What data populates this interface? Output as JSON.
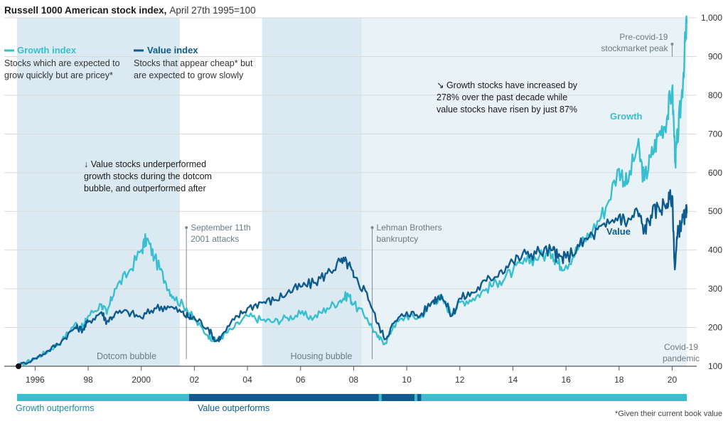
{
  "colors": {
    "growth": "#38bfcf",
    "value": "#0e5b8f",
    "shade": "#cfe3ee",
    "gridline": "#d9d9d9",
    "annotation_line": "#7a8a96"
  },
  "chart_data": {
    "type": "line",
    "title": "Russell 1000 American stock index,",
    "subtitle": "April 27th 1995=100",
    "ylim": [
      100,
      1000
    ],
    "yticks": [
      100,
      200,
      300,
      400,
      500,
      600,
      700,
      800,
      900,
      1000
    ],
    "ytick_labels": [
      "100",
      "200",
      "300",
      "400",
      "500",
      "600",
      "700",
      "800",
      "900",
      "1,000"
    ],
    "xlim": [
      1995.32,
      2020.55
    ],
    "xticks": [
      1996,
      1998,
      2000,
      2002,
      2004,
      2006,
      2008,
      2010,
      2012,
      2014,
      2016,
      2018,
      2020
    ],
    "xtick_labels": [
      "1996",
      "98",
      "2000",
      "02",
      "04",
      "06",
      "08",
      "10",
      "12",
      "14",
      "16",
      "18",
      "20"
    ],
    "series": [
      {
        "name": "Growth",
        "x": [
          1995.32,
          1996.0,
          1996.5,
          1997.0,
          1997.5,
          1997.8,
          1998.0,
          1998.5,
          1998.7,
          1999.0,
          1999.5,
          2000.0,
          2000.2,
          2000.5,
          2000.9,
          2001.2,
          2001.7,
          2002.0,
          2002.5,
          2002.8,
          2003.0,
          2003.5,
          2004.0,
          2004.5,
          2005.0,
          2005.5,
          2006.0,
          2006.5,
          2007.0,
          2007.5,
          2007.8,
          2008.0,
          2008.5,
          2008.9,
          2009.2,
          2009.5,
          2010.0,
          2010.5,
          2011.0,
          2011.3,
          2011.7,
          2012.0,
          2012.5,
          2013.0,
          2013.5,
          2014.0,
          2014.5,
          2015.0,
          2015.5,
          2015.7,
          2016.0,
          2016.5,
          2017.0,
          2017.5,
          2018.0,
          2018.3,
          2018.7,
          2018.95,
          2019.2,
          2019.5,
          2019.8,
          2020.0,
          2020.12,
          2020.2,
          2020.35,
          2020.5,
          2020.55
        ],
        "y": [
          100,
          120,
          140,
          165,
          210,
          200,
          230,
          260,
          235,
          300,
          340,
          400,
          430,
          380,
          320,
          280,
          250,
          220,
          180,
          165,
          175,
          200,
          230,
          220,
          215,
          225,
          235,
          225,
          250,
          270,
          285,
          260,
          225,
          175,
          160,
          205,
          230,
          225,
          270,
          275,
          235,
          265,
          275,
          300,
          320,
          345,
          370,
          385,
          390,
          365,
          360,
          410,
          450,
          510,
          610,
          570,
          670,
          580,
          640,
          700,
          740,
          820,
          630,
          690,
          790,
          940,
          985
        ]
      },
      {
        "name": "Value",
        "x": [
          1995.32,
          1996.0,
          1996.5,
          1997.0,
          1997.5,
          1997.8,
          1998.0,
          1998.5,
          1998.7,
          1999.0,
          1999.5,
          2000.0,
          2000.5,
          2001.0,
          2001.5,
          2001.8,
          2002.0,
          2002.5,
          2002.8,
          2003.0,
          2003.5,
          2004.0,
          2004.5,
          2005.0,
          2005.5,
          2006.0,
          2006.5,
          2007.0,
          2007.5,
          2007.8,
          2008.0,
          2008.5,
          2008.9,
          2009.2,
          2009.5,
          2010.0,
          2010.5,
          2011.0,
          2011.3,
          2011.7,
          2012.0,
          2012.5,
          2013.0,
          2013.5,
          2014.0,
          2014.5,
          2015.0,
          2015.5,
          2015.7,
          2016.0,
          2016.5,
          2017.0,
          2017.5,
          2018.0,
          2018.3,
          2018.7,
          2018.95,
          2019.2,
          2019.5,
          2019.8,
          2020.0,
          2020.1,
          2020.2,
          2020.35,
          2020.5,
          2020.55
        ],
        "y": [
          100,
          120,
          140,
          165,
          200,
          195,
          215,
          240,
          215,
          235,
          240,
          225,
          250,
          255,
          240,
          225,
          225,
          200,
          165,
          175,
          220,
          250,
          265,
          270,
          290,
          305,
          315,
          340,
          370,
          365,
          330,
          290,
          210,
          170,
          210,
          240,
          230,
          270,
          285,
          230,
          275,
          290,
          320,
          345,
          370,
          390,
          395,
          400,
          380,
          380,
          410,
          440,
          460,
          490,
          470,
          500,
          450,
          490,
          510,
          520,
          540,
          350,
          440,
          470,
          490,
          495
        ]
      }
    ],
    "shaded_periods": [
      {
        "label": "Dotcom bubble",
        "start": 1995.32,
        "end": 2001.45
      },
      {
        "label": "Housing bubble",
        "start": 2004.55,
        "end": 2008.3
      },
      {
        "label": "",
        "start": 2008.3,
        "end": 2020.55
      }
    ],
    "event_lines": [
      {
        "x": 2001.7,
        "label_lines": [
          "September 11th",
          "2001 attacks"
        ]
      },
      {
        "x": 2008.7,
        "label_lines": [
          "Lehman Brothers",
          "bankruptcy"
        ]
      },
      {
        "x": 2020.0,
        "label_lines": [
          "Pre-covid-19",
          "stockmarket peak"
        ]
      }
    ],
    "covid_label_lines": [
      "Covid-19",
      "pandemic"
    ],
    "series_labels": {
      "growth": "Growth",
      "value": "Value"
    },
    "legend": {
      "growth_title": "Growth index",
      "growth_desc": [
        "Stocks which are expected to",
        "grow quickly but are pricey*"
      ],
      "value_title": "Value index",
      "value_desc": [
        "Stocks that appear cheap* but",
        "are expected to grow slowly"
      ]
    },
    "annotations": {
      "dotcom": [
        "↓ Value stocks underperformed",
        "growth stocks during the dotcom",
        "bubble, and outperformed after"
      ],
      "decade": [
        "↘ Growth stocks have increased by",
        "278% over the past decade while",
        "value stocks have risen by just 87%"
      ]
    },
    "outperform_bar": {
      "growth_label": "Growth outperforms",
      "value_label": "Value outperforms",
      "segments": [
        {
          "start": 1995.32,
          "end": 2001.8,
          "winner": "growth"
        },
        {
          "start": 2001.8,
          "end": 2008.95,
          "winner": "value"
        },
        {
          "start": 2008.95,
          "end": 2009.05,
          "winner": "growth"
        },
        {
          "start": 2009.05,
          "end": 2010.3,
          "winner": "value"
        },
        {
          "start": 2010.3,
          "end": 2010.4,
          "winner": "growth"
        },
        {
          "start": 2010.4,
          "end": 2010.55,
          "winner": "value"
        },
        {
          "start": 2010.55,
          "end": 2020.55,
          "winner": "growth"
        }
      ]
    },
    "footnote": "*Given their current book value"
  }
}
